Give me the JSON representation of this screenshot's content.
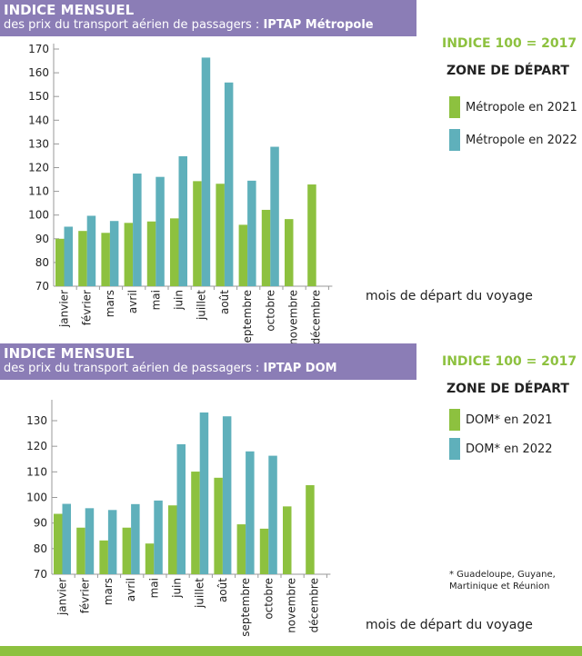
{
  "colors": {
    "header": "#8b7db6",
    "y2021": "#8dc13f",
    "y2022": "#5fb0bb"
  },
  "chart_data": [
    {
      "type": "bar",
      "title": "INDICE MENSUEL",
      "subtitle": "des prix du transport aérien de passagers : ",
      "subtitle_bold": "IPTAP Métropole",
      "index_note": "INDICE 100 = 2017",
      "legend_title": "ZONE DE DÉPART",
      "xlabel": "mois de départ du voyage",
      "categories": [
        "janvier",
        "février",
        "mars",
        "avril",
        "mai",
        "juin",
        "juillet",
        "août",
        "septembre",
        "octobre",
        "novembre",
        "décembre"
      ],
      "ylim": [
        70,
        170
      ],
      "yticks": [
        70,
        80,
        90,
        100,
        110,
        120,
        130,
        140,
        150,
        160,
        170
      ],
      "legend": "right",
      "series": [
        {
          "name": "Métropole en 2021",
          "values": [
            90,
            93.3,
            92.5,
            96.7,
            97.3,
            98.6,
            114.3,
            113.2,
            95.9,
            102.2,
            98.3,
            112.9
          ]
        },
        {
          "name": "Métropole en 2022",
          "values": [
            95.1,
            99.7,
            97.5,
            117.5,
            116.1,
            124.8,
            166.4,
            155.9,
            114.5,
            128.8,
            null,
            null
          ]
        }
      ]
    },
    {
      "type": "bar",
      "title": "INDICE MENSUEL",
      "subtitle": "des prix du transport aérien de passagers : ",
      "subtitle_bold": "IPTAP DOM",
      "index_note": "INDICE 100 = 2017",
      "legend_title": "ZONE DE DÉPART",
      "xlabel": "mois de départ du voyage",
      "note": "* Guadeloupe, Guyane, Martinique et Réunion",
      "categories": [
        "janvier",
        "février",
        "mars",
        "avril",
        "mai",
        "juin",
        "juillet",
        "août",
        "septembre",
        "octobre",
        "novembre",
        "décembre"
      ],
      "ylim": [
        70,
        130
      ],
      "yticks": [
        70,
        80,
        90,
        100,
        110,
        120,
        130
      ],
      "legend": "right",
      "series": [
        {
          "name": "DOM* en 2021",
          "values": [
            93.6,
            88.2,
            83.2,
            88.2,
            82,
            96.9,
            110.1,
            107.7,
            89.5,
            87.8,
            96.5,
            104.8
          ]
        },
        {
          "name": "DOM* en 2022",
          "values": [
            97.5,
            95.8,
            95.1,
            97.4,
            98.8,
            120.8,
            133.2,
            131.7,
            118,
            116.3,
            null,
            null
          ]
        }
      ]
    }
  ]
}
